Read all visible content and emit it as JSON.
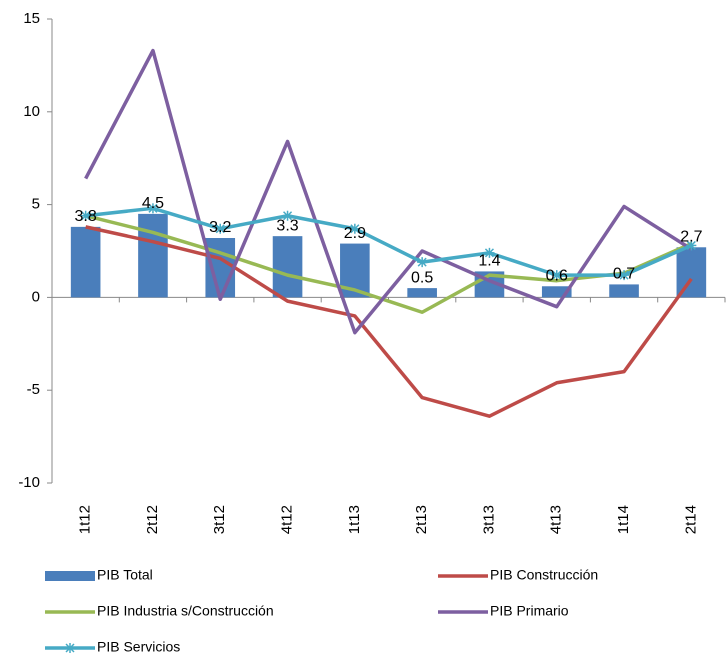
{
  "chart_data": {
    "type": "bar",
    "categories": [
      "1t12",
      "2t12",
      "3t12",
      "4t12",
      "1t13",
      "2t13",
      "3t13",
      "4t13",
      "1t14",
      "2t14"
    ],
    "series": [
      {
        "name": "PIB Total",
        "type": "bar",
        "color": "#4a7ebb",
        "values": [
          3.8,
          4.5,
          3.2,
          3.3,
          2.9,
          0.5,
          1.4,
          0.6,
          0.7,
          2.7
        ]
      },
      {
        "name": "PIB Construcción",
        "type": "line",
        "color": "#be4b48",
        "values": [
          3.8,
          3.0,
          2.1,
          -0.2,
          -1.0,
          -5.4,
          -6.4,
          -4.6,
          -4.0,
          1.0
        ]
      },
      {
        "name": "PIB Industria s/Construcción",
        "type": "line",
        "color": "#98b954",
        "values": [
          4.4,
          3.5,
          2.4,
          1.2,
          0.4,
          -0.8,
          1.2,
          0.9,
          1.3,
          2.9
        ]
      },
      {
        "name": "PIB Primario",
        "type": "line",
        "color": "#7d5fa0",
        "values": [
          6.4,
          13.3,
          -0.1,
          8.4,
          -1.9,
          2.5,
          0.9,
          -0.5,
          4.9,
          2.6
        ]
      },
      {
        "name": "PIB Servicios",
        "type": "line",
        "color": "#46aac5",
        "marker": "asterisk",
        "values": [
          4.4,
          4.8,
          3.7,
          4.4,
          3.7,
          1.9,
          2.4,
          1.2,
          1.2,
          2.8
        ]
      }
    ],
    "ylim": [
      -10,
      15
    ],
    "yticks": [
      -10,
      -5,
      0,
      5,
      10,
      15
    ],
    "grid": false,
    "legend": "bottom"
  }
}
